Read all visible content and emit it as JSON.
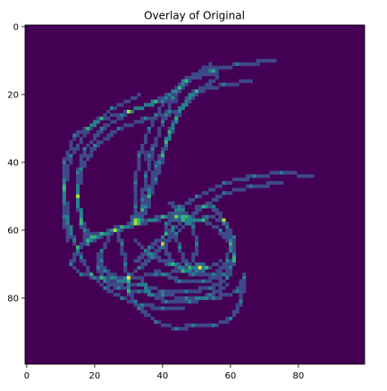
{
  "chart_data": {
    "type": "heatmap",
    "title": "Overlay of Original",
    "xlabel": "",
    "ylabel": "",
    "xlim": [
      -0.5,
      99.5
    ],
    "ylim": [
      99.5,
      -0.5
    ],
    "xticks": [
      0,
      20,
      40,
      60,
      80
    ],
    "yticks": [
      0,
      20,
      40,
      60,
      80
    ],
    "grid": false,
    "colormap": "viridis",
    "background_value": 0,
    "strokes": [
      [
        [
          73,
          10
        ],
        [
          62,
          11
        ],
        [
          54,
          13
        ],
        [
          47,
          16
        ],
        [
          43,
          21
        ],
        [
          40,
          28
        ],
        [
          37,
          36
        ],
        [
          35,
          44
        ],
        [
          34,
          51
        ],
        [
          33,
          57
        ]
      ],
      [
        [
          66,
          16
        ],
        [
          58,
          17
        ],
        [
          50,
          19
        ],
        [
          45,
          24
        ],
        [
          42,
          31
        ],
        [
          40,
          38
        ],
        [
          38,
          45
        ],
        [
          36,
          50
        ],
        [
          35,
          55
        ]
      ],
      [
        [
          56,
          15
        ],
        [
          48,
          20
        ],
        [
          44,
          27
        ],
        [
          41,
          34
        ],
        [
          38,
          41
        ],
        [
          36,
          48
        ],
        [
          34,
          54
        ],
        [
          33,
          58
        ]
      ],
      [
        [
          54,
          11
        ],
        [
          46,
          16
        ],
        [
          40,
          22
        ],
        [
          36,
          30
        ],
        [
          33,
          38
        ],
        [
          32,
          46
        ],
        [
          32,
          53
        ],
        [
          32,
          58
        ]
      ],
      [
        [
          45,
          18
        ],
        [
          38,
          22
        ],
        [
          30,
          25
        ],
        [
          22,
          30
        ],
        [
          17,
          36
        ],
        [
          15,
          43
        ],
        [
          15,
          50
        ],
        [
          16,
          57
        ],
        [
          19,
          63
        ]
      ],
      [
        [
          44,
          25
        ],
        [
          35,
          27
        ],
        [
          27,
          30
        ],
        [
          20,
          35
        ],
        [
          16,
          42
        ],
        [
          15,
          50
        ],
        [
          16,
          58
        ],
        [
          18,
          64
        ]
      ],
      [
        [
          38,
          22
        ],
        [
          30,
          25
        ],
        [
          22,
          27
        ],
        [
          14,
          32
        ],
        [
          11,
          40
        ],
        [
          11,
          48
        ],
        [
          12,
          56
        ],
        [
          13,
          62
        ]
      ],
      [
        [
          33,
          20
        ],
        [
          25,
          24
        ],
        [
          18,
          30
        ],
        [
          13,
          38
        ],
        [
          11,
          47
        ],
        [
          11,
          56
        ],
        [
          12,
          63
        ]
      ],
      [
        [
          84,
          44
        ],
        [
          75,
          43
        ],
        [
          67,
          44
        ],
        [
          58,
          46
        ],
        [
          50,
          50
        ],
        [
          44,
          54
        ],
        [
          38,
          57
        ],
        [
          32,
          58
        ],
        [
          26,
          60
        ],
        [
          20,
          62
        ],
        [
          15,
          65
        ],
        [
          13,
          70
        ],
        [
          16,
          73
        ],
        [
          22,
          74
        ],
        [
          30,
          74
        ],
        [
          38,
          73
        ],
        [
          46,
          72
        ],
        [
          53,
          71
        ],
        [
          57,
          69
        ]
      ],
      [
        [
          75,
          46
        ],
        [
          66,
          47
        ],
        [
          58,
          49
        ],
        [
          52,
          53
        ],
        [
          46,
          57
        ],
        [
          41,
          61
        ],
        [
          36,
          65
        ],
        [
          32,
          69
        ]
      ],
      [
        [
          50,
          53
        ],
        [
          55,
          53
        ],
        [
          58,
          57
        ],
        [
          60,
          63
        ],
        [
          59,
          69
        ],
        [
          55,
          73
        ],
        [
          49,
          73
        ],
        [
          43,
          70
        ],
        [
          40,
          64
        ],
        [
          41,
          58
        ],
        [
          44,
          56
        ],
        [
          48,
          57
        ]
      ],
      [
        [
          27,
          76
        ],
        [
          33,
          71
        ],
        [
          40,
          64
        ],
        [
          47,
          58
        ],
        [
          53,
          56
        ],
        [
          58,
          57
        ],
        [
          61,
          62
        ],
        [
          61,
          68
        ],
        [
          58,
          73
        ],
        [
          52,
          75
        ],
        [
          45,
          75
        ],
        [
          38,
          72
        ]
      ],
      [
        [
          17,
          63
        ],
        [
          22,
          61
        ],
        [
          28,
          59
        ],
        [
          34,
          57
        ],
        [
          40,
          56
        ],
        [
          46,
          56
        ],
        [
          52,
          57
        ],
        [
          57,
          60
        ],
        [
          60,
          64
        ],
        [
          61,
          69
        ],
        [
          59,
          74
        ],
        [
          54,
          77
        ],
        [
          47,
          78
        ],
        [
          40,
          78
        ],
        [
          33,
          76
        ],
        [
          27,
          75
        ],
        [
          23,
          72
        ],
        [
          21,
          67
        ]
      ],
      [
        [
          24,
          62
        ],
        [
          22,
          66
        ],
        [
          21,
          71
        ],
        [
          23,
          75
        ],
        [
          27,
          77
        ],
        [
          33,
          78
        ],
        [
          40,
          79
        ],
        [
          47,
          80
        ],
        [
          55,
          80
        ],
        [
          62,
          78
        ],
        [
          64,
          73
        ]
      ],
      [
        [
          64,
          74
        ],
        [
          63,
          81
        ],
        [
          60,
          86
        ],
        [
          55,
          88
        ],
        [
          49,
          88
        ],
        [
          44,
          89
        ],
        [
          38,
          87
        ],
        [
          33,
          83
        ],
        [
          30,
          78
        ],
        [
          30,
          73
        ]
      ],
      [
        [
          59,
          76
        ],
        [
          54,
          79
        ],
        [
          48,
          81
        ],
        [
          41,
          81
        ],
        [
          36,
          79
        ],
        [
          34,
          75
        ]
      ],
      [
        [
          32,
          63
        ],
        [
          36,
          67
        ],
        [
          42,
          70
        ],
        [
          48,
          71
        ],
        [
          53,
          71
        ]
      ],
      [
        [
          12,
          57
        ],
        [
          14,
          63
        ],
        [
          16,
          68
        ],
        [
          19,
          73
        ],
        [
          23,
          77
        ],
        [
          28,
          80
        ],
        [
          34,
          82
        ],
        [
          40,
          83
        ],
        [
          46,
          83
        ]
      ],
      [
        [
          43,
          59
        ],
        [
          45,
          65
        ],
        [
          47,
          70
        ],
        [
          50,
          72
        ]
      ],
      [
        [
          26,
          59
        ],
        [
          28,
          64
        ],
        [
          29,
          70
        ],
        [
          30,
          75
        ]
      ],
      [
        [
          42,
          52
        ],
        [
          46,
          54
        ],
        [
          49,
          59
        ],
        [
          50,
          64
        ],
        [
          49,
          69
        ]
      ]
    ],
    "hotspots": [
      {
        "x": 51,
        "y": 71,
        "value": 1.0
      },
      {
        "x": 32,
        "y": 57,
        "value": 0.85
      },
      {
        "x": 44,
        "y": 56,
        "value": 0.8
      },
      {
        "x": 19,
        "y": 62,
        "value": 0.65
      },
      {
        "x": 43,
        "y": 21,
        "value": 0.5
      },
      {
        "x": 55,
        "y": 13,
        "value": 0.6
      },
      {
        "x": 36,
        "y": 38,
        "value": 0.45
      },
      {
        "x": 25,
        "y": 74,
        "value": 0.5
      }
    ]
  }
}
